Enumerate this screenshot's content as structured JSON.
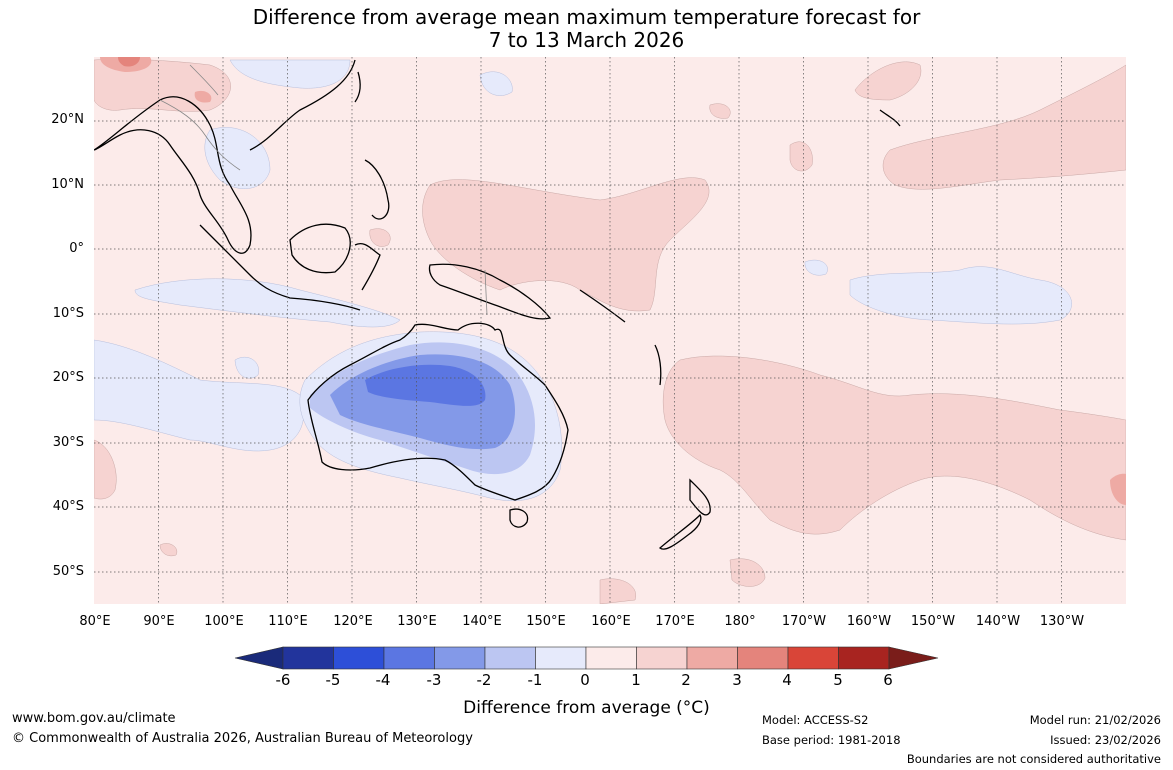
{
  "title": {
    "line1": "Difference from average mean maximum temperature forecast for",
    "line2": "7 to 13 March 2026"
  },
  "map": {
    "lat_labels": [
      "20°N",
      "10°N",
      "0°",
      "10°S",
      "20°S",
      "30°S",
      "40°S",
      "50°S"
    ],
    "lon_labels": [
      "80°E",
      "90°E",
      "100°E",
      "110°E",
      "120°E",
      "130°E",
      "140°E",
      "150°E",
      "160°E",
      "170°E",
      "180°",
      "170°W",
      "160°W",
      "150°W",
      "140°W",
      "130°W"
    ]
  },
  "colorbar": {
    "ticks": [
      "-6",
      "-5",
      "-4",
      "-3",
      "-2",
      "-1",
      "0",
      "1",
      "2",
      "3",
      "4",
      "5",
      "6"
    ],
    "colors": [
      "#22349c",
      "#2d4fd8",
      "#5b76e2",
      "#8399e8",
      "#bcc6f2",
      "#e6eafb",
      "#fcebea",
      "#f6d3d1",
      "#eeaaa4",
      "#e4847c",
      "#d94538",
      "#a82420"
    ],
    "under_color": "#1a2a7a",
    "over_color": "#7a1d1a",
    "label": "Difference from average (°C)"
  },
  "footer": {
    "website": "www.bom.gov.au/climate",
    "copyright": "© Commonwealth of Australia 2026, Australian Bureau of Meteorology",
    "model": "Model: ACCESS-S2",
    "base_period": "Base period: 1981-2018",
    "model_run": "Model run: 21/02/2026",
    "issued": "Issued: 23/02/2026",
    "disclaimer": "Boundaries are not considered authoritative"
  }
}
